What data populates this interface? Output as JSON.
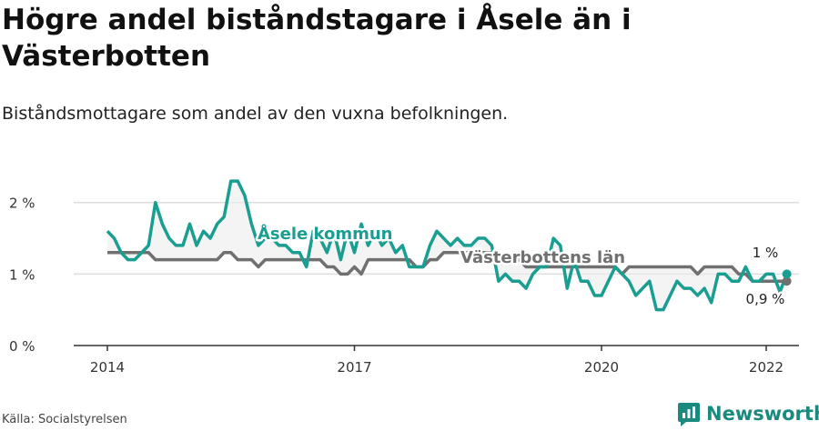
{
  "title": "Högre andel biståndstagare i Åsele än i Västerbotten",
  "subtitle": "Biståndsmottagare som andel av den vuxna befolkningen.",
  "source": "Källa: Socialstyrelsen",
  "brand": {
    "name": "Newsworthy",
    "icon": "newsworthy-logo-icon"
  },
  "colors": {
    "asele": "#1a9e92",
    "lan": "#707070",
    "fill": "#ececec",
    "grid": "#dddddd",
    "axis": "#333333"
  },
  "chart_data": {
    "type": "line",
    "ylim": [
      0,
      2.2
    ],
    "xlim": [
      2014,
      2022.42
    ],
    "y_ticks": [
      {
        "value": 0,
        "label": "0 %"
      },
      {
        "value": 1,
        "label": "1 %"
      },
      {
        "value": 2,
        "label": "2 %"
      }
    ],
    "x_ticks": [
      {
        "value": 2014,
        "label": "2014"
      },
      {
        "value": 2017,
        "label": "2017"
      },
      {
        "value": 2020,
        "label": "2020"
      },
      {
        "value": 2022,
        "label": "2022"
      }
    ],
    "grid": true,
    "start": "2014-01",
    "end_labels": {
      "asele": "1 %",
      "lan": "0,9 %"
    },
    "series": [
      {
        "key": "asele",
        "name": "Åsele kommun",
        "values": [
          1.6,
          1.5,
          1.3,
          1.2,
          1.2,
          1.3,
          1.4,
          2.0,
          1.7,
          1.5,
          1.4,
          1.4,
          1.7,
          1.4,
          1.6,
          1.5,
          1.7,
          1.8,
          2.3,
          2.3,
          2.1,
          1.7,
          1.4,
          1.5,
          1.5,
          1.4,
          1.4,
          1.3,
          1.3,
          1.1,
          1.6,
          1.5,
          1.3,
          1.6,
          1.2,
          1.6,
          1.3,
          1.7,
          1.4,
          1.6,
          1.4,
          1.5,
          1.3,
          1.4,
          1.1,
          1.1,
          1.1,
          1.4,
          1.6,
          1.5,
          1.4,
          1.5,
          1.4,
          1.4,
          1.5,
          1.5,
          1.4,
          0.9,
          1.0,
          0.9,
          0.9,
          0.8,
          1.0,
          1.1,
          1.1,
          1.5,
          1.4,
          0.8,
          1.2,
          0.9,
          0.9,
          0.7,
          0.7,
          0.9,
          1.1,
          1.0,
          0.9,
          0.7,
          0.8,
          0.9,
          0.5,
          0.5,
          0.7,
          0.9,
          0.8,
          0.8,
          0.7,
          0.8,
          0.6,
          1.0,
          1.0,
          0.9,
          0.9,
          1.1,
          0.9,
          0.9,
          1.0,
          1.0,
          0.75,
          1.0
        ]
      },
      {
        "key": "lan",
        "name": "Västerbottens län",
        "values": [
          1.3,
          1.3,
          1.3,
          1.3,
          1.3,
          1.3,
          1.3,
          1.2,
          1.2,
          1.2,
          1.2,
          1.2,
          1.2,
          1.2,
          1.2,
          1.2,
          1.2,
          1.3,
          1.3,
          1.2,
          1.2,
          1.2,
          1.1,
          1.2,
          1.2,
          1.2,
          1.2,
          1.2,
          1.2,
          1.2,
          1.2,
          1.2,
          1.1,
          1.1,
          1.0,
          1.0,
          1.1,
          1.0,
          1.2,
          1.2,
          1.2,
          1.2,
          1.2,
          1.2,
          1.2,
          1.1,
          1.1,
          1.2,
          1.2,
          1.3,
          1.3,
          1.3,
          1.3,
          1.3,
          1.3,
          1.3,
          1.3,
          1.2,
          1.2,
          1.2,
          1.2,
          1.1,
          1.1,
          1.1,
          1.1,
          1.1,
          1.1,
          1.1,
          1.1,
          1.1,
          1.1,
          1.1,
          1.1,
          1.1,
          1.1,
          1.0,
          1.1,
          1.1,
          1.1,
          1.1,
          1.1,
          1.1,
          1.1,
          1.1,
          1.1,
          1.1,
          1.0,
          1.1,
          1.1,
          1.1,
          1.1,
          1.1,
          1.0,
          1.0,
          0.9,
          0.9,
          0.9,
          0.9,
          0.9,
          0.9
        ]
      }
    ]
  }
}
